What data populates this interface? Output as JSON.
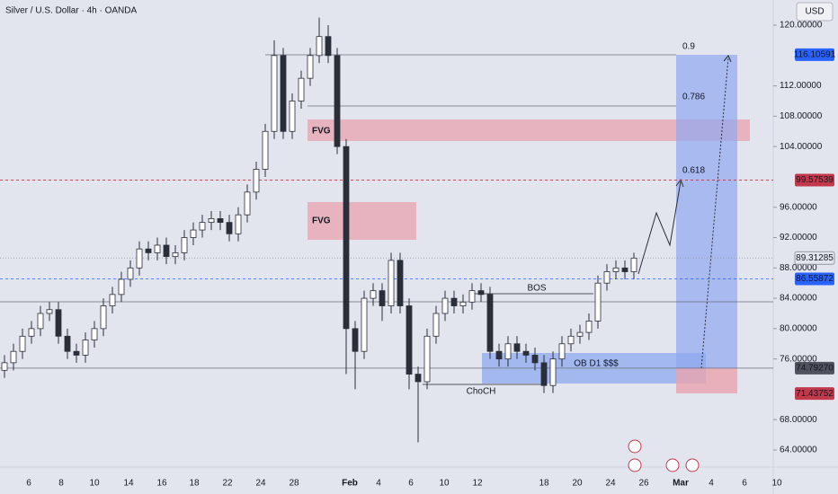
{
  "header": {
    "symbol": "Silver / U.S. Dollar · 4h · OANDA",
    "currency": "USD"
  },
  "chart_data": {
    "type": "candlestick",
    "ylim": [
      61.75,
      123.32
    ],
    "yticks": [
      {
        "value": 64,
        "label": "64.00000"
      },
      {
        "value": 68,
        "label": "68.00000"
      },
      {
        "value": 76,
        "label": "76.00000"
      },
      {
        "value": 80,
        "label": "80.00000"
      },
      {
        "value": 84,
        "label": "84.00000"
      },
      {
        "value": 88,
        "label": "88.00000"
      },
      {
        "value": 92,
        "label": "92.00000"
      },
      {
        "value": 96,
        "label": "96.00000"
      },
      {
        "value": 104,
        "label": "104.00000"
      },
      {
        "value": 108,
        "label": "108.00000"
      },
      {
        "value": 112,
        "label": "112.00000"
      },
      {
        "value": 120,
        "label": "120.00000"
      }
    ],
    "xtick_labels": [
      "6",
      "8",
      "10",
      "14",
      "16",
      "18",
      "22",
      "24",
      "28",
      "Feb",
      "4",
      "6",
      "10",
      "12",
      "18",
      "20",
      "24",
      "26",
      "Mar",
      "4",
      "6",
      "10"
    ],
    "up_color": "#ffffff",
    "down_color": "#2a2e39",
    "series": {
      "open": [
        74.5,
        75.5,
        77,
        79,
        80,
        82,
        82.5,
        79,
        77,
        76.5,
        78.5,
        80,
        83,
        84.5,
        86.5,
        88,
        90.5,
        90,
        91,
        89.5,
        90,
        92,
        93,
        94,
        94.5,
        94,
        92.5,
        95,
        98,
        101,
        106,
        116,
        106,
        110,
        113,
        116,
        118.5,
        116,
        104,
        80,
        77,
        84,
        85,
        83,
        89,
        83,
        74,
        73,
        79,
        82,
        84,
        83,
        83.5,
        85,
        84.5,
        77,
        76,
        78,
        77,
        76.5,
        75.5,
        72.5,
        76,
        78,
        79,
        79.5,
        81,
        86,
        87.5,
        88,
        87.5
      ],
      "high": [
        76.5,
        78,
        80,
        81,
        83,
        83.5,
        83.5,
        80,
        78,
        79.5,
        81,
        84,
        85.5,
        87.5,
        89,
        91.5,
        91.5,
        92,
        92,
        91,
        93,
        94,
        95,
        95.5,
        95.5,
        95,
        96,
        99,
        102,
        107,
        118,
        117,
        111,
        114,
        117,
        121,
        120,
        117,
        105,
        81,
        85,
        86,
        86,
        90,
        90,
        84,
        75,
        80,
        83,
        85,
        85,
        84.5,
        86,
        86,
        85.5,
        78,
        79,
        79,
        78,
        77.5,
        76.5,
        77,
        79,
        80,
        80.5,
        82,
        87,
        88.5,
        89,
        89,
        90
      ],
      "low": [
        73.5,
        74.5,
        76,
        78,
        79,
        81,
        78,
        76,
        75.5,
        75.5,
        77.5,
        79,
        82,
        83.5,
        85.5,
        87,
        89,
        89,
        88.5,
        88.5,
        89,
        91,
        92,
        93,
        93,
        91.5,
        91.5,
        94,
        97,
        100,
        105,
        105,
        105,
        109,
        112,
        115,
        115,
        103,
        74,
        72,
        76,
        83,
        81,
        82,
        82,
        72,
        65,
        72,
        78,
        81,
        82,
        82,
        82.5,
        83.5,
        76,
        75,
        75,
        76,
        75.5,
        74.5,
        71.5,
        71.5,
        75,
        77,
        78,
        78.5,
        80,
        85,
        86.5,
        86.5,
        86.5
      ],
      "close": [
        75.5,
        77,
        79,
        80,
        82,
        82.5,
        79,
        77,
        76.5,
        78.5,
        80,
        83,
        84.5,
        86.5,
        88,
        90.5,
        90,
        91,
        89.5,
        90,
        92,
        93,
        94,
        94.5,
        94,
        92.5,
        95,
        98,
        101,
        106,
        116,
        106,
        110,
        113,
        116,
        118.5,
        116,
        104,
        80,
        77,
        84,
        85,
        83,
        89,
        83,
        74,
        73,
        79,
        82,
        84,
        83,
        83.5,
        85,
        84.5,
        77,
        76,
        78,
        77,
        76.5,
        75.5,
        72.5,
        76,
        78,
        79,
        79.5,
        81,
        86,
        87.5,
        88,
        87.5,
        89.3
      ]
    },
    "price_labels": [
      {
        "value": 116.10591,
        "color": "#2962ff",
        "text_color": "#ffffff"
      },
      {
        "value": 99.57539,
        "color": "#c2394b",
        "text_color": "#ffffff"
      },
      {
        "value": 89.31285,
        "color": "#e3e5ee",
        "text_color": "#131722"
      },
      {
        "value": 86.55872,
        "color": "#2962ff",
        "text_color": "#ffffff"
      },
      {
        "value": 74.7927,
        "label": "74.79270",
        "color": "#50535e",
        "text_color": "#ffffff"
      },
      {
        "value": 71.43752,
        "color": "#c2394b",
        "text_color": "#ffffff"
      }
    ],
    "annotations": {
      "fvg": [
        "FVG",
        "FVG"
      ],
      "order_block": "OB D1 $$$",
      "bos": "BOS",
      "choch": "ChoCH",
      "fib_levels": [
        0.9,
        0.786,
        0.618
      ]
    }
  }
}
